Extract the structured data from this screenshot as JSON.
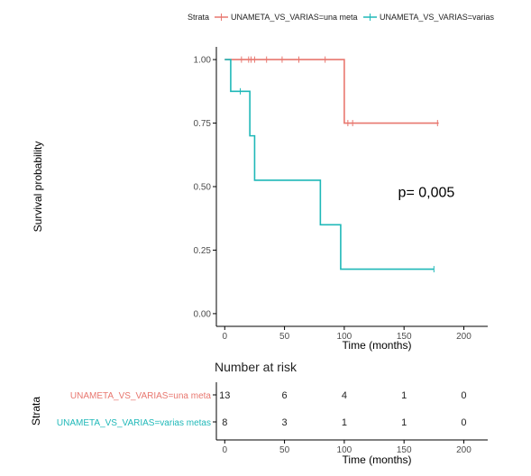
{
  "chart_data": [
    {
      "type": "line",
      "subtype": "kaplan-meier-step",
      "legend": {
        "title": "Strata",
        "position": "top",
        "entries": [
          "UNAMETA_VS_VARIAS=una meta",
          "UNAMETA_VS_VARIAS=varias"
        ]
      },
      "xlabel": "Time  (months)",
      "ylabel": "Survival probability",
      "xlim": [
        -7,
        220
      ],
      "ylim": [
        -0.05,
        1.05
      ],
      "xticks": [
        0,
        50,
        100,
        150,
        200
      ],
      "xtick_labels": [
        "0",
        "50",
        "100",
        "150",
        "200"
      ],
      "yticks": [
        0,
        0.25,
        0.5,
        0.75,
        1
      ],
      "ytick_labels": [
        "0.00",
        "0.25",
        "0.50",
        "0.75",
        "1.00"
      ],
      "grid": false,
      "annotation": "p= 0,005",
      "annotation_at": {
        "x": 145,
        "y": 0.46
      },
      "series": [
        {
          "name": "UNAMETA_VS_VARIAS=una meta",
          "color": "#e8776f",
          "steps": [
            {
              "x": 0,
              "y": 1.0
            },
            {
              "x": 100,
              "y": 0.75
            },
            {
              "x": 179,
              "y": 0.75
            }
          ],
          "censored": [
            {
              "x": 14,
              "y": 1.0
            },
            {
              "x": 20,
              "y": 1.0
            },
            {
              "x": 22,
              "y": 1.0
            },
            {
              "x": 25,
              "y": 1.0
            },
            {
              "x": 35,
              "y": 1.0
            },
            {
              "x": 48,
              "y": 1.0
            },
            {
              "x": 62,
              "y": 1.0
            },
            {
              "x": 84,
              "y": 1.0
            },
            {
              "x": 103,
              "y": 0.75
            },
            {
              "x": 107,
              "y": 0.75
            },
            {
              "x": 178,
              "y": 0.75
            }
          ]
        },
        {
          "name": "UNAMETA_VS_VARIAS=varias",
          "color": "#1fb8b8",
          "steps": [
            {
              "x": 0,
              "y": 1.0
            },
            {
              "x": 5,
              "y": 0.875
            },
            {
              "x": 21,
              "y": 0.7
            },
            {
              "x": 25,
              "y": 0.525
            },
            {
              "x": 80,
              "y": 0.35
            },
            {
              "x": 97,
              "y": 0.175
            },
            {
              "x": 175,
              "y": 0.175
            }
          ],
          "censored": [
            {
              "x": 13,
              "y": 0.875
            },
            {
              "x": 175,
              "y": 0.175
            }
          ]
        }
      ]
    },
    {
      "type": "table",
      "title": "Number at risk",
      "ylabel": "Strata",
      "xlabel": "Time  (months)",
      "x": [
        0,
        50,
        100,
        150,
        200
      ],
      "xtick_labels": [
        "0",
        "50",
        "100",
        "150",
        "200"
      ],
      "rows": [
        {
          "label": "UNAMETA_VS_VARIAS=una meta",
          "color": "#e8776f",
          "values": [
            13,
            6,
            4,
            1,
            0
          ]
        },
        {
          "label": "UNAMETA_VS_VARIAS=varias metas",
          "color": "#1fb8b8",
          "values": [
            8,
            3,
            1,
            1,
            0
          ]
        }
      ]
    }
  ]
}
